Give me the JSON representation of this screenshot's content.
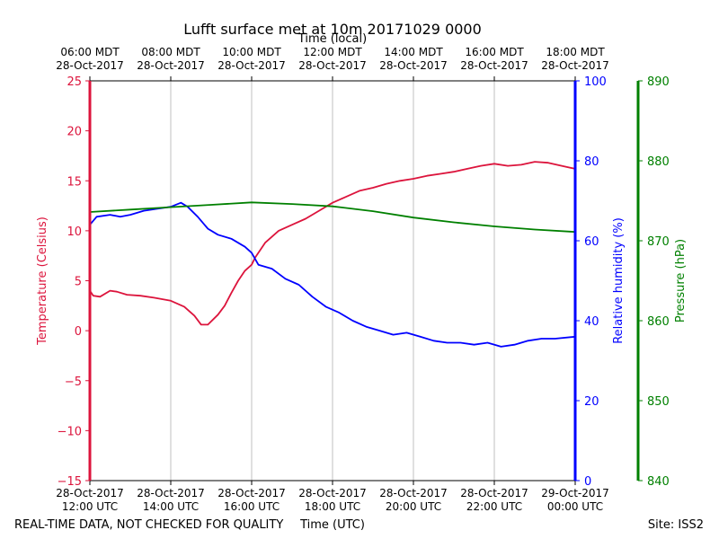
{
  "chart_data": {
    "type": "line",
    "title": "Lufft surface met at 10m 20171029 0000",
    "top_axis_label": "Time (local)",
    "xlabel": "Time (UTC)",
    "x_range": [
      "2017-10-28T12:00Z",
      "2017-10-29T00:00Z"
    ],
    "bottom_ticks": [
      {
        "x": "2017-10-28T12:00Z",
        "line1": "28-Oct-2017",
        "line2": "12:00 UTC"
      },
      {
        "x": "2017-10-28T14:00Z",
        "line1": "28-Oct-2017",
        "line2": "14:00 UTC"
      },
      {
        "x": "2017-10-28T16:00Z",
        "line1": "28-Oct-2017",
        "line2": "16:00 UTC"
      },
      {
        "x": "2017-10-28T18:00Z",
        "line1": "28-Oct-2017",
        "line2": "18:00 UTC"
      },
      {
        "x": "2017-10-28T20:00Z",
        "line1": "28-Oct-2017",
        "line2": "20:00 UTC"
      },
      {
        "x": "2017-10-28T22:00Z",
        "line1": "28-Oct-2017",
        "line2": "22:00 UTC"
      },
      {
        "x": "2017-10-29T00:00Z",
        "line1": "29-Oct-2017",
        "line2": "00:00 UTC"
      }
    ],
    "top_ticks": [
      {
        "x": "2017-10-28T12:00Z",
        "line1": "06:00 MDT",
        "line2": "28-Oct-2017"
      },
      {
        "x": "2017-10-28T14:00Z",
        "line1": "08:00 MDT",
        "line2": "28-Oct-2017"
      },
      {
        "x": "2017-10-28T16:00Z",
        "line1": "10:00 MDT",
        "line2": "28-Oct-2017"
      },
      {
        "x": "2017-10-28T18:00Z",
        "line1": "12:00 MDT",
        "line2": "28-Oct-2017"
      },
      {
        "x": "2017-10-28T20:00Z",
        "line1": "14:00 MDT",
        "line2": "28-Oct-2017"
      },
      {
        "x": "2017-10-28T22:00Z",
        "line1": "16:00 MDT",
        "line2": "28-Oct-2017"
      },
      {
        "x": "2017-10-29T00:00Z",
        "line1": "18:00 MDT",
        "line2": "28-Oct-2017"
      }
    ],
    "grid": "vertical",
    "axes": {
      "temperature": {
        "label": "Temperature (Celsius)",
        "range": [
          -15,
          25
        ],
        "ticks": [
          -15,
          -10,
          -5,
          0,
          5,
          10,
          15,
          20,
          25
        ],
        "color": "#dc143c"
      },
      "humidity": {
        "label": "Relative humidity (%)",
        "range": [
          0,
          100
        ],
        "ticks": [
          0,
          20,
          40,
          60,
          80,
          100
        ],
        "color": "#0000ff"
      },
      "pressure": {
        "label": "Pressure (hPa)",
        "range": [
          840,
          890
        ],
        "ticks": [
          840,
          850,
          860,
          870,
          880,
          890
        ],
        "color": "#008000"
      }
    },
    "series": [
      {
        "name": "Temperature",
        "axis": "temperature",
        "color": "#dc143c",
        "points": [
          [
            "2017-10-28T12:00Z",
            4.0
          ],
          [
            "2017-10-28T12:05Z",
            3.5
          ],
          [
            "2017-10-28T12:15Z",
            3.4
          ],
          [
            "2017-10-28T12:30Z",
            4.0
          ],
          [
            "2017-10-28T12:40Z",
            3.9
          ],
          [
            "2017-10-28T12:55Z",
            3.6
          ],
          [
            "2017-10-28T13:15Z",
            3.5
          ],
          [
            "2017-10-28T13:35Z",
            3.3
          ],
          [
            "2017-10-28T14:00Z",
            3.0
          ],
          [
            "2017-10-28T14:20Z",
            2.4
          ],
          [
            "2017-10-28T14:35Z",
            1.5
          ],
          [
            "2017-10-28T14:45Z",
            0.6
          ],
          [
            "2017-10-28T14:55Z",
            0.6
          ],
          [
            "2017-10-28T15:10Z",
            1.6
          ],
          [
            "2017-10-28T15:20Z",
            2.5
          ],
          [
            "2017-10-28T15:30Z",
            3.8
          ],
          [
            "2017-10-28T15:40Z",
            5.0
          ],
          [
            "2017-10-28T15:50Z",
            6.0
          ],
          [
            "2017-10-28T16:00Z",
            6.6
          ],
          [
            "2017-10-28T16:05Z",
            7.3
          ],
          [
            "2017-10-28T16:20Z",
            8.8
          ],
          [
            "2017-10-28T16:40Z",
            10.0
          ],
          [
            "2017-10-28T17:00Z",
            10.6
          ],
          [
            "2017-10-28T17:20Z",
            11.2
          ],
          [
            "2017-10-28T17:40Z",
            12.0
          ],
          [
            "2017-10-28T18:00Z",
            12.8
          ],
          [
            "2017-10-28T18:20Z",
            13.4
          ],
          [
            "2017-10-28T18:40Z",
            14.0
          ],
          [
            "2017-10-28T19:00Z",
            14.3
          ],
          [
            "2017-10-28T19:20Z",
            14.7
          ],
          [
            "2017-10-28T19:40Z",
            15.0
          ],
          [
            "2017-10-28T20:00Z",
            15.2
          ],
          [
            "2017-10-28T20:20Z",
            15.5
          ],
          [
            "2017-10-28T20:40Z",
            15.7
          ],
          [
            "2017-10-28T21:00Z",
            15.9
          ],
          [
            "2017-10-28T21:20Z",
            16.2
          ],
          [
            "2017-10-28T21:40Z",
            16.5
          ],
          [
            "2017-10-28T22:00Z",
            16.7
          ],
          [
            "2017-10-28T22:20Z",
            16.5
          ],
          [
            "2017-10-28T22:40Z",
            16.6
          ],
          [
            "2017-10-28T23:00Z",
            16.9
          ],
          [
            "2017-10-28T23:20Z",
            16.8
          ],
          [
            "2017-10-28T23:40Z",
            16.5
          ],
          [
            "2017-10-29T00:00Z",
            16.2
          ]
        ]
      },
      {
        "name": "Relative humidity",
        "axis": "humidity",
        "color": "#0000ff",
        "points": [
          [
            "2017-10-28T12:00Z",
            64
          ],
          [
            "2017-10-28T12:10Z",
            66
          ],
          [
            "2017-10-28T12:30Z",
            66.5
          ],
          [
            "2017-10-28T12:45Z",
            66
          ],
          [
            "2017-10-28T13:00Z",
            66.5
          ],
          [
            "2017-10-28T13:20Z",
            67.5
          ],
          [
            "2017-10-28T13:40Z",
            68
          ],
          [
            "2017-10-28T14:00Z",
            68.5
          ],
          [
            "2017-10-28T14:15Z",
            69.5
          ],
          [
            "2017-10-28T14:25Z",
            68.5
          ],
          [
            "2017-10-28T14:40Z",
            66
          ],
          [
            "2017-10-28T14:55Z",
            63
          ],
          [
            "2017-10-28T15:10Z",
            61.5
          ],
          [
            "2017-10-28T15:30Z",
            60.5
          ],
          [
            "2017-10-28T15:50Z",
            58.5
          ],
          [
            "2017-10-28T16:00Z",
            57
          ],
          [
            "2017-10-28T16:10Z",
            54
          ],
          [
            "2017-10-28T16:30Z",
            53
          ],
          [
            "2017-10-28T16:50Z",
            50.5
          ],
          [
            "2017-10-28T17:10Z",
            49
          ],
          [
            "2017-10-28T17:30Z",
            46
          ],
          [
            "2017-10-28T17:50Z",
            43.5
          ],
          [
            "2017-10-28T18:10Z",
            42
          ],
          [
            "2017-10-28T18:30Z",
            40
          ],
          [
            "2017-10-28T18:50Z",
            38.5
          ],
          [
            "2017-10-28T19:10Z",
            37.5
          ],
          [
            "2017-10-28T19:30Z",
            36.5
          ],
          [
            "2017-10-28T19:50Z",
            37
          ],
          [
            "2017-10-28T20:10Z",
            36
          ],
          [
            "2017-10-28T20:30Z",
            35
          ],
          [
            "2017-10-28T20:50Z",
            34.5
          ],
          [
            "2017-10-28T21:10Z",
            34.5
          ],
          [
            "2017-10-28T21:30Z",
            34
          ],
          [
            "2017-10-28T21:50Z",
            34.5
          ],
          [
            "2017-10-28T22:10Z",
            33.5
          ],
          [
            "2017-10-28T22:30Z",
            34
          ],
          [
            "2017-10-28T22:50Z",
            35
          ],
          [
            "2017-10-28T23:10Z",
            35.5
          ],
          [
            "2017-10-28T23:30Z",
            35.5
          ],
          [
            "2017-10-29T00:00Z",
            36
          ]
        ]
      },
      {
        "name": "Pressure",
        "axis": "pressure",
        "color": "#008000",
        "points": [
          [
            "2017-10-28T12:00Z",
            873.6
          ],
          [
            "2017-10-28T13:00Z",
            873.9
          ],
          [
            "2017-10-28T14:00Z",
            874.2
          ],
          [
            "2017-10-28T15:00Z",
            874.5
          ],
          [
            "2017-10-28T16:00Z",
            874.8
          ],
          [
            "2017-10-28T17:00Z",
            874.6
          ],
          [
            "2017-10-28T18:00Z",
            874.3
          ],
          [
            "2017-10-28T19:00Z",
            873.7
          ],
          [
            "2017-10-28T20:00Z",
            872.9
          ],
          [
            "2017-10-28T21:00Z",
            872.3
          ],
          [
            "2017-10-28T22:00Z",
            871.8
          ],
          [
            "2017-10-28T23:00Z",
            871.4
          ],
          [
            "2017-10-29T00:00Z",
            871.1
          ]
        ]
      }
    ]
  },
  "footer": {
    "left": "REAL-TIME DATA, NOT CHECKED FOR QUALITY",
    "site": "Site: ISS2"
  }
}
